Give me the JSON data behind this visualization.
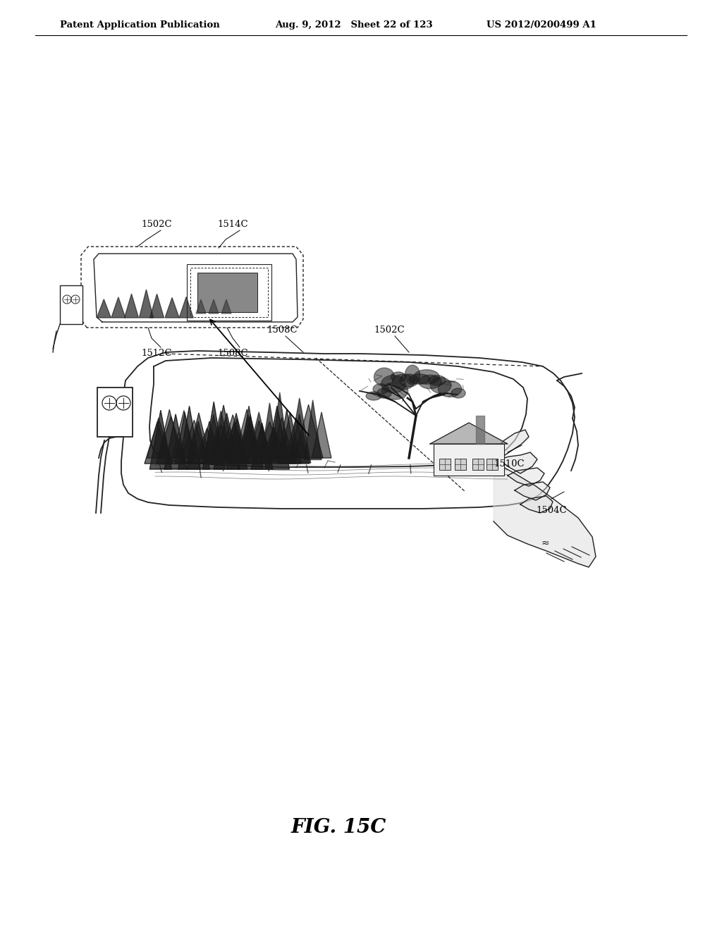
{
  "background_color": "#ffffff",
  "line_color": "#222222",
  "header_left": "Patent Application Publication",
  "header_mid": "Aug. 9, 2012   Sheet 22 of 123",
  "header_right": "US 2012/0200499 A1",
  "figure_label": "FIG. 15C",
  "label_fontsize": 9.5,
  "header_fontsize": 9.5,
  "figure_label_fontsize": 20
}
